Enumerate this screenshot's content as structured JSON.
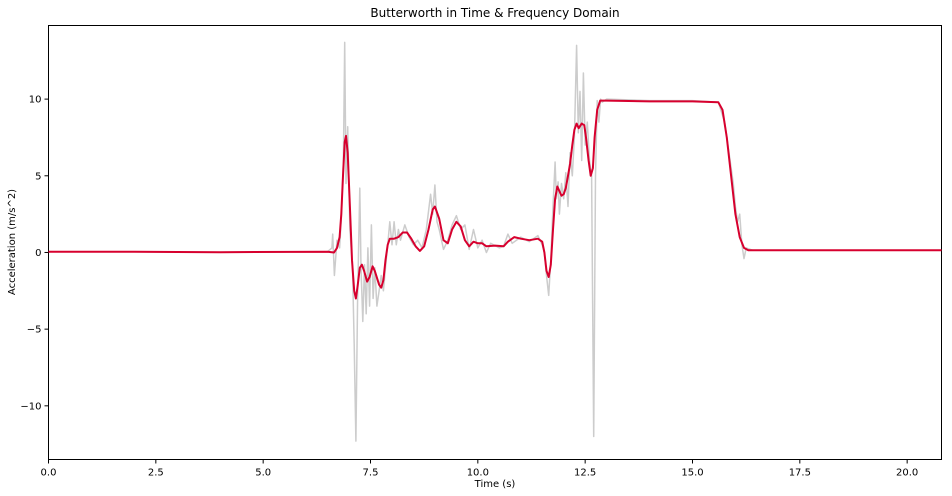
{
  "chart_data": {
    "type": "line",
    "title": "Butterworth in Time & Frequency Domain",
    "xlabel": "Time (s)",
    "ylabel": "Acceleration (m/s^2)",
    "xlim": [
      0,
      20.8
    ],
    "ylim": [
      -13.5,
      14.8
    ],
    "xticks": [
      0,
      2.5,
      5,
      7.5,
      10,
      12.5,
      15,
      17.5,
      20
    ],
    "xtick_labels": [
      "0.0",
      "2.5",
      "5.0",
      "7.5",
      "10.0",
      "12.5",
      "15.0",
      "17.5",
      "20.0"
    ],
    "yticks": [
      -10,
      -5,
      0,
      5,
      10
    ],
    "ytick_labels": [
      "−10",
      "−5",
      "0",
      "5",
      "10"
    ],
    "grid": false,
    "series": [
      {
        "color": "#cccccc",
        "points": [
          [
            0,
            0.05
          ],
          [
            2,
            0.05
          ],
          [
            4,
            0.02
          ],
          [
            6.5,
            0.05
          ],
          [
            6.6,
            0.3
          ],
          [
            6.62,
            1.2
          ],
          [
            6.66,
            -1.5
          ],
          [
            6.72,
            0.8
          ],
          [
            6.78,
            0.3
          ],
          [
            6.82,
            2.2
          ],
          [
            6.87,
            6.0
          ],
          [
            6.9,
            13.7
          ],
          [
            6.93,
            4.5
          ],
          [
            6.97,
            8.2
          ],
          [
            7.02,
            1.5
          ],
          [
            7.08,
            -1.0
          ],
          [
            7.12,
            -6.0
          ],
          [
            7.16,
            -12.3
          ],
          [
            7.2,
            -3.0
          ],
          [
            7.25,
            4.2
          ],
          [
            7.28,
            -1.0
          ],
          [
            7.32,
            -4.5
          ],
          [
            7.36,
            -0.8
          ],
          [
            7.4,
            -4.0
          ],
          [
            7.44,
            0.3
          ],
          [
            7.48,
            -3.5
          ],
          [
            7.52,
            1.8
          ],
          [
            7.56,
            -3.0
          ],
          [
            7.6,
            -1.0
          ],
          [
            7.65,
            -3.5
          ],
          [
            7.7,
            -2.5
          ],
          [
            7.75,
            -1.5
          ],
          [
            7.8,
            -2.5
          ],
          [
            7.85,
            -1.0
          ],
          [
            7.9,
            0.5
          ],
          [
            7.95,
            2.0
          ],
          [
            8.0,
            0.5
          ],
          [
            8.05,
            2.0
          ],
          [
            8.1,
            0.5
          ],
          [
            8.15,
            1.5
          ],
          [
            8.2,
            0.8
          ],
          [
            8.3,
            1.8
          ],
          [
            8.4,
            1.0
          ],
          [
            8.5,
            0.5
          ],
          [
            8.6,
            0.8
          ],
          [
            8.7,
            0.3
          ],
          [
            8.8,
            1.5
          ],
          [
            8.9,
            3.8
          ],
          [
            8.95,
            2.5
          ],
          [
            9.0,
            4.4
          ],
          [
            9.05,
            2.0
          ],
          [
            9.1,
            1.5
          ],
          [
            9.2,
            0.2
          ],
          [
            9.3,
            0.8
          ],
          [
            9.4,
            1.8
          ],
          [
            9.5,
            2.4
          ],
          [
            9.6,
            1.5
          ],
          [
            9.7,
            1.8
          ],
          [
            9.8,
            0.2
          ],
          [
            9.9,
            1.5
          ],
          [
            10.0,
            0.3
          ],
          [
            10.1,
            0.8
          ],
          [
            10.2,
            0.0
          ],
          [
            10.3,
            0.6
          ],
          [
            10.5,
            0.3
          ],
          [
            10.6,
            0.4
          ],
          [
            10.7,
            1.2
          ],
          [
            10.8,
            0.6
          ],
          [
            11.0,
            1.0
          ],
          [
            11.2,
            0.7
          ],
          [
            11.4,
            1.1
          ],
          [
            11.5,
            0.5
          ],
          [
            11.55,
            0.0
          ],
          [
            11.6,
            -1.5
          ],
          [
            11.65,
            -2.8
          ],
          [
            11.7,
            -0.5
          ],
          [
            11.75,
            3.0
          ],
          [
            11.8,
            5.9
          ],
          [
            11.83,
            3.5
          ],
          [
            11.87,
            4.6
          ],
          [
            11.9,
            2.5
          ],
          [
            11.95,
            4.5
          ],
          [
            12.0,
            3.5
          ],
          [
            12.05,
            5.2
          ],
          [
            12.1,
            3.0
          ],
          [
            12.15,
            6.5
          ],
          [
            12.2,
            5.0
          ],
          [
            12.25,
            7.5
          ],
          [
            12.3,
            13.5
          ],
          [
            12.34,
            7.8
          ],
          [
            12.38,
            10.5
          ],
          [
            12.42,
            6.0
          ],
          [
            12.46,
            11.7
          ],
          [
            12.5,
            7.0
          ],
          [
            12.55,
            8.5
          ],
          [
            12.6,
            6.0
          ],
          [
            12.65,
            5.0
          ],
          [
            12.7,
            -12.0
          ],
          [
            12.74,
            5.0
          ],
          [
            12.78,
            9.9
          ],
          [
            12.82,
            8.5
          ],
          [
            12.86,
            10.0
          ],
          [
            12.9,
            9.8
          ],
          [
            13.0,
            10.0
          ],
          [
            14.0,
            9.9
          ],
          [
            15.0,
            9.9
          ],
          [
            15.6,
            9.8
          ],
          [
            15.75,
            8.5
          ],
          [
            15.85,
            6.5
          ],
          [
            15.95,
            4.5
          ],
          [
            16.0,
            3.0
          ],
          [
            16.05,
            2.0
          ],
          [
            16.1,
            2.5
          ],
          [
            16.15,
            0.5
          ],
          [
            16.2,
            -0.4
          ],
          [
            16.25,
            0.3
          ],
          [
            16.4,
            0.15
          ],
          [
            18.0,
            0.15
          ],
          [
            20.8,
            0.15
          ]
        ]
      },
      {
        "color": "#d7002e",
        "points": [
          [
            0,
            0.05
          ],
          [
            2,
            0.05
          ],
          [
            4,
            0.02
          ],
          [
            6.5,
            0.05
          ],
          [
            6.65,
            0.0
          ],
          [
            6.72,
            0.3
          ],
          [
            6.78,
            1.0
          ],
          [
            6.82,
            2.5
          ],
          [
            6.86,
            5.0
          ],
          [
            6.9,
            7.2
          ],
          [
            6.93,
            7.6
          ],
          [
            6.97,
            6.5
          ],
          [
            7.02,
            3.0
          ],
          [
            7.07,
            -0.5
          ],
          [
            7.12,
            -2.5
          ],
          [
            7.16,
            -3.0
          ],
          [
            7.2,
            -2.2
          ],
          [
            7.25,
            -1.0
          ],
          [
            7.3,
            -0.8
          ],
          [
            7.35,
            -1.2
          ],
          [
            7.42,
            -1.9
          ],
          [
            7.48,
            -1.6
          ],
          [
            7.55,
            -0.9
          ],
          [
            7.6,
            -1.2
          ],
          [
            7.7,
            -2.1
          ],
          [
            7.75,
            -2.3
          ],
          [
            7.8,
            -1.8
          ],
          [
            7.85,
            -0.5
          ],
          [
            7.9,
            0.5
          ],
          [
            7.95,
            0.9
          ],
          [
            8.05,
            0.9
          ],
          [
            8.15,
            1.0
          ],
          [
            8.25,
            1.3
          ],
          [
            8.35,
            1.3
          ],
          [
            8.45,
            0.9
          ],
          [
            8.55,
            0.4
          ],
          [
            8.65,
            0.1
          ],
          [
            8.75,
            0.4
          ],
          [
            8.85,
            1.5
          ],
          [
            8.95,
            2.8
          ],
          [
            9.0,
            3.0
          ],
          [
            9.1,
            2.2
          ],
          [
            9.2,
            0.8
          ],
          [
            9.3,
            0.6
          ],
          [
            9.4,
            1.5
          ],
          [
            9.5,
            2.0
          ],
          [
            9.6,
            1.7
          ],
          [
            9.7,
            0.8
          ],
          [
            9.8,
            0.4
          ],
          [
            9.9,
            0.7
          ],
          [
            10.0,
            0.6
          ],
          [
            10.1,
            0.6
          ],
          [
            10.2,
            0.4
          ],
          [
            10.4,
            0.45
          ],
          [
            10.6,
            0.4
          ],
          [
            10.7,
            0.7
          ],
          [
            10.85,
            1.0
          ],
          [
            11.0,
            0.9
          ],
          [
            11.2,
            0.8
          ],
          [
            11.4,
            0.9
          ],
          [
            11.5,
            0.7
          ],
          [
            11.55,
            0.0
          ],
          [
            11.6,
            -1.2
          ],
          [
            11.65,
            -1.6
          ],
          [
            11.7,
            -0.8
          ],
          [
            11.75,
            1.5
          ],
          [
            11.8,
            3.5
          ],
          [
            11.85,
            4.3
          ],
          [
            11.9,
            4.0
          ],
          [
            11.95,
            3.7
          ],
          [
            12.0,
            3.8
          ],
          [
            12.05,
            4.2
          ],
          [
            12.1,
            5.0
          ],
          [
            12.15,
            5.8
          ],
          [
            12.2,
            7.0
          ],
          [
            12.25,
            8.0
          ],
          [
            12.3,
            8.4
          ],
          [
            12.35,
            8.1
          ],
          [
            12.42,
            8.4
          ],
          [
            12.48,
            8.3
          ],
          [
            12.52,
            7.5
          ],
          [
            12.58,
            6.0
          ],
          [
            12.63,
            5.0
          ],
          [
            12.68,
            5.5
          ],
          [
            12.72,
            7.5
          ],
          [
            12.78,
            9.3
          ],
          [
            12.85,
            9.9
          ],
          [
            13.0,
            9.9
          ],
          [
            14.0,
            9.85
          ],
          [
            15.0,
            9.85
          ],
          [
            15.6,
            9.8
          ],
          [
            15.7,
            9.3
          ],
          [
            15.8,
            7.5
          ],
          [
            15.9,
            5.0
          ],
          [
            16.0,
            2.5
          ],
          [
            16.1,
            1.0
          ],
          [
            16.2,
            0.3
          ],
          [
            16.3,
            0.15
          ],
          [
            18.0,
            0.15
          ],
          [
            20.8,
            0.15
          ]
        ]
      }
    ]
  }
}
